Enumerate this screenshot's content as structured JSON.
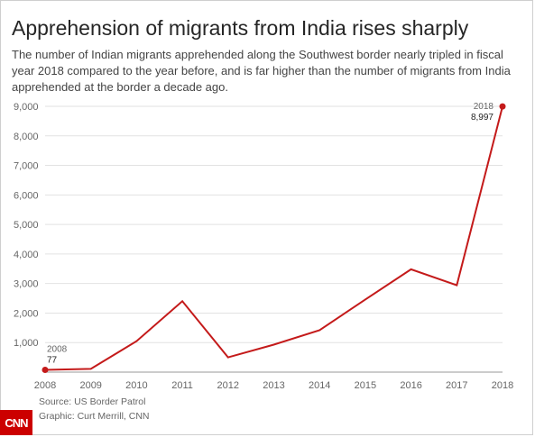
{
  "title": "Apprehension of migrants from India rises sharply",
  "subtitle": "The number of Indian migrants apprehended along the Southwest border nearly tripled in fiscal year 2018 compared to the year before, and is far higher than the number of migrants from India apprehended at the border a decade ago.",
  "source": "Source: US Border Patrol",
  "credit": "Graphic: Curt Merrill, CNN",
  "logo": "CNN",
  "colors": {
    "line": "#c41a1a",
    "grid": "#e2e2e2",
    "text": "#666666"
  },
  "chart_data": {
    "type": "line",
    "x": [
      2008,
      2009,
      2010,
      2011,
      2012,
      2013,
      2014,
      2015,
      2016,
      2017,
      2018
    ],
    "series": [
      {
        "values": [
          77,
          110,
          1050,
          2400,
          500,
          930,
          1420,
          2460,
          3480,
          2940,
          8997
        ]
      }
    ],
    "ylim": [
      0,
      9000
    ],
    "yticks": [
      1000,
      2000,
      3000,
      4000,
      5000,
      6000,
      7000,
      8000,
      9000
    ],
    "ytick_labels": [
      "1,000",
      "2,000",
      "3,000",
      "4,000",
      "5,000",
      "6,000",
      "7,000",
      "8,000",
      "9,000"
    ],
    "xtick_labels": [
      "2008",
      "2009",
      "2010",
      "2011",
      "2012",
      "2013",
      "2014",
      "2015",
      "2016",
      "2017",
      "2018"
    ],
    "annotations": [
      {
        "year": "2008",
        "value": "77"
      },
      {
        "year": "2018",
        "value": "8,997"
      }
    ],
    "grid": true,
    "xlabel": "",
    "ylabel": ""
  }
}
